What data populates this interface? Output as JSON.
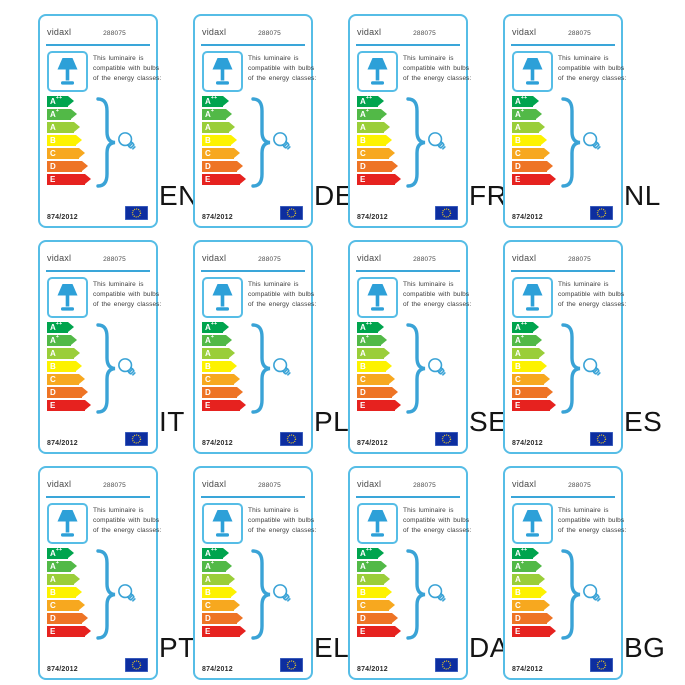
{
  "languages": [
    "EN",
    "DE",
    "FR",
    "NL",
    "IT",
    "PL",
    "SE",
    "ES",
    "PT",
    "EL",
    "DA",
    "BG"
  ],
  "card": {
    "brand": "vidaxl",
    "product_number": "288075",
    "compatibility_lines": [
      "This luminaire is",
      "compatible with bulbs",
      "of the energy classes:"
    ],
    "regulation": "874/2012"
  },
  "energy_classes": [
    {
      "base": "A",
      "sup": "++",
      "color": "#00a44e"
    },
    {
      "base": "A",
      "sup": "+",
      "color": "#52b947"
    },
    {
      "base": "A",
      "sup": "",
      "color": "#9ace39"
    },
    {
      "base": "B",
      "sup": "",
      "color": "#fdf200"
    },
    {
      "base": "C",
      "sup": "",
      "color": "#f7a81f"
    },
    {
      "base": "D",
      "sup": "",
      "color": "#ee7425"
    },
    {
      "base": "E",
      "sup": "",
      "color": "#e6221f"
    }
  ],
  "icons": {
    "lamp": "table-lamp-icon",
    "brace": "curly-brace-icon",
    "bulb": "light-bulb-icon",
    "flag": "eu-flag-icon"
  },
  "colors": {
    "card_border": "#56bde6",
    "divider": "#3aa6d9",
    "lamp_icon": "#2da0d8",
    "brace": "#3aa3d6",
    "flag_bg": "#0d2ea0",
    "flag_stars": "#ffd617",
    "text": "#3c3c3c",
    "label_text": "#141414"
  }
}
